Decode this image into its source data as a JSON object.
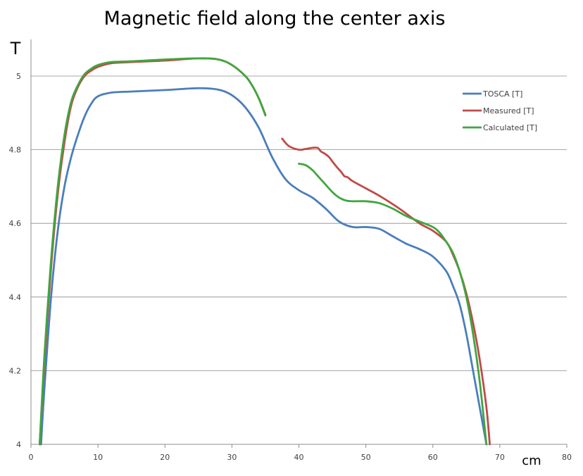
{
  "chart_data": {
    "type": "line",
    "title": "Magnetic field along the center axis",
    "xlabel": "cm",
    "ylabel": "T",
    "xlim": [
      0,
      80
    ],
    "ylim": [
      4,
      5.1
    ],
    "x_ticks": [
      "0",
      "10",
      "20",
      "30",
      "40",
      "50",
      "60",
      "70",
      "80"
    ],
    "y_ticks": [
      "4",
      "4.2",
      "4.4",
      "4.6",
      "4.8",
      "5"
    ],
    "grid": "horizontal",
    "legend_position": "right",
    "series": [
      {
        "name": "TOSCA [T]",
        "color": "#4a7ebb",
        "segments": [
          [
            [
              1.5,
              4.0
            ],
            [
              2,
              4.15
            ],
            [
              3,
              4.4
            ],
            [
              4,
              4.58
            ],
            [
              5,
              4.7
            ],
            [
              6,
              4.78
            ],
            [
              7,
              4.84
            ],
            [
              8,
              4.89
            ],
            [
              9,
              4.925
            ],
            [
              10,
              4.945
            ],
            [
              12,
              4.955
            ],
            [
              15,
              4.958
            ],
            [
              20,
              4.962
            ],
            [
              25,
              4.967
            ],
            [
              28,
              4.963
            ],
            [
              30,
              4.948
            ],
            [
              32,
              4.915
            ],
            [
              34,
              4.86
            ],
            [
              36,
              4.78
            ],
            [
              38,
              4.72
            ],
            [
              40,
              4.69
            ],
            [
              42,
              4.67
            ],
            [
              44,
              4.64
            ],
            [
              46,
              4.605
            ],
            [
              48,
              4.59
            ],
            [
              50,
              4.59
            ],
            [
              52,
              4.585
            ],
            [
              54,
              4.565
            ],
            [
              56,
              4.545
            ],
            [
              58,
              4.53
            ],
            [
              60,
              4.51
            ],
            [
              62,
              4.47
            ],
            [
              63,
              4.43
            ],
            [
              64,
              4.38
            ],
            [
              65,
              4.3
            ],
            [
              66,
              4.2
            ],
            [
              67,
              4.1
            ],
            [
              68,
              4.0
            ]
          ]
        ]
      },
      {
        "name": "Measured [T]",
        "color": "#be4b48",
        "segments": [
          [
            [
              1.3,
              4.0
            ],
            [
              2,
              4.22
            ],
            [
              3,
              4.48
            ],
            [
              4,
              4.68
            ],
            [
              5,
              4.82
            ],
            [
              6,
              4.92
            ],
            [
              7,
              4.97
            ],
            [
              8,
              5.0
            ],
            [
              9,
              5.015
            ],
            [
              10,
              5.025
            ],
            [
              12,
              5.035
            ],
            [
              15,
              5.038
            ],
            [
              20,
              5.042
            ],
            [
              25,
              5.048
            ],
            [
              28,
              5.045
            ],
            [
              30,
              5.03
            ],
            [
              32,
              5.0
            ],
            [
              33,
              4.975
            ],
            [
              34,
              4.94
            ],
            [
              35,
              4.895
            ]
          ],
          [
            [
              37.5,
              4.83
            ],
            [
              38.5,
              4.81
            ],
            [
              40,
              4.8
            ],
            [
              41,
              4.802
            ],
            [
              42,
              4.805
            ],
            [
              42.8,
              4.805
            ],
            [
              43.3,
              4.795
            ],
            [
              43.8,
              4.79
            ],
            [
              44.5,
              4.78
            ],
            [
              45,
              4.768
            ],
            [
              45.8,
              4.75
            ],
            [
              46.3,
              4.74
            ],
            [
              46.8,
              4.728
            ],
            [
              47.3,
              4.725
            ],
            [
              48,
              4.715
            ],
            [
              50,
              4.695
            ],
            [
              52,
              4.675
            ],
            [
              55,
              4.64
            ],
            [
              58,
              4.6
            ],
            [
              60,
              4.58
            ],
            [
              62,
              4.55
            ],
            [
              63,
              4.515
            ],
            [
              64,
              4.47
            ],
            [
              65,
              4.41
            ],
            [
              66,
              4.33
            ],
            [
              67,
              4.23
            ],
            [
              68,
              4.1
            ],
            [
              68.5,
              4.0
            ]
          ]
        ]
      },
      {
        "name": "Calculated [T]",
        "color": "#40a63f",
        "segments": [
          [
            [
              1.3,
              4.0
            ],
            [
              2,
              4.24
            ],
            [
              3,
              4.5
            ],
            [
              4,
              4.7
            ],
            [
              5,
              4.84
            ],
            [
              6,
              4.93
            ],
            [
              7,
              4.975
            ],
            [
              8,
              5.005
            ],
            [
              9,
              5.02
            ],
            [
              10,
              5.03
            ],
            [
              12,
              5.038
            ],
            [
              15,
              5.04
            ],
            [
              20,
              5.045
            ],
            [
              25,
              5.048
            ],
            [
              28,
              5.045
            ],
            [
              30,
              5.03
            ],
            [
              32,
              5.0
            ],
            [
              33,
              4.975
            ],
            [
              34,
              4.94
            ],
            [
              35,
              4.893
            ]
          ],
          [
            [
              40,
              4.762
            ],
            [
              41,
              4.758
            ],
            [
              42,
              4.745
            ],
            [
              43,
              4.725
            ],
            [
              44,
              4.705
            ],
            [
              45,
              4.685
            ],
            [
              46,
              4.67
            ],
            [
              47,
              4.662
            ],
            [
              48,
              4.66
            ],
            [
              50,
              4.66
            ],
            [
              52,
              4.655
            ],
            [
              54,
              4.64
            ],
            [
              56,
              4.62
            ],
            [
              58,
              4.605
            ],
            [
              60,
              4.59
            ],
            [
              61,
              4.575
            ],
            [
              62,
              4.55
            ],
            [
              63,
              4.52
            ],
            [
              64,
              4.47
            ],
            [
              65,
              4.4
            ],
            [
              66,
              4.3
            ],
            [
              67,
              4.17
            ],
            [
              68,
              4.0
            ]
          ]
        ]
      }
    ]
  }
}
